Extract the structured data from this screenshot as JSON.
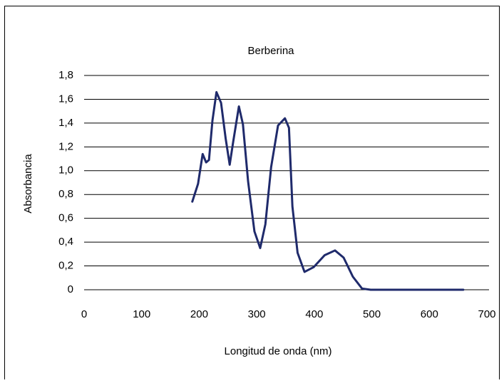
{
  "chart_data": {
    "type": "line",
    "title": "Berberina",
    "x_label": "Longitud de onda (nm)",
    "y_label": "Absorbancia",
    "xlim": [
      0,
      700
    ],
    "xticks": [
      0,
      100,
      200,
      300,
      400,
      500,
      600,
      700
    ],
    "ylim": [
      0,
      1.8
    ],
    "yticks": [
      0,
      {
        "value": 0.2,
        "label": "0,2"
      },
      {
        "value": 0.4,
        "label": "0,4"
      },
      {
        "value": 0.6,
        "label": "0,6"
      },
      {
        "value": 0.8,
        "label": "0,8"
      },
      {
        "value": 1.0,
        "label": "1,0"
      },
      {
        "value": 1.2,
        "label": "1,2"
      },
      {
        "value": 1.4,
        "label": "1,4"
      },
      {
        "value": 1.6,
        "label": "1,6"
      },
      {
        "value": 1.8,
        "label": "1,8"
      }
    ],
    "grid": true,
    "x": [
      188,
      198,
      206,
      212,
      217,
      223,
      230,
      238,
      246,
      253,
      259,
      269,
      276,
      285,
      296,
      306,
      315,
      325,
      337,
      349,
      356,
      362,
      371,
      383,
      399,
      418,
      436,
      451,
      467,
      483,
      498,
      659
    ],
    "series": [
      {
        "color": "#1f2a6b",
        "values": [
          0.74,
          0.89,
          1.14,
          1.07,
          1.09,
          1.42,
          1.66,
          1.57,
          1.27,
          1.05,
          1.24,
          1.54,
          1.39,
          0.91,
          0.49,
          0.35,
          0.55,
          1.03,
          1.38,
          1.44,
          1.36,
          0.7,
          0.31,
          0.15,
          0.19,
          0.29,
          0.33,
          0.27,
          0.11,
          0.01,
          0,
          0
        ]
      }
    ]
  }
}
